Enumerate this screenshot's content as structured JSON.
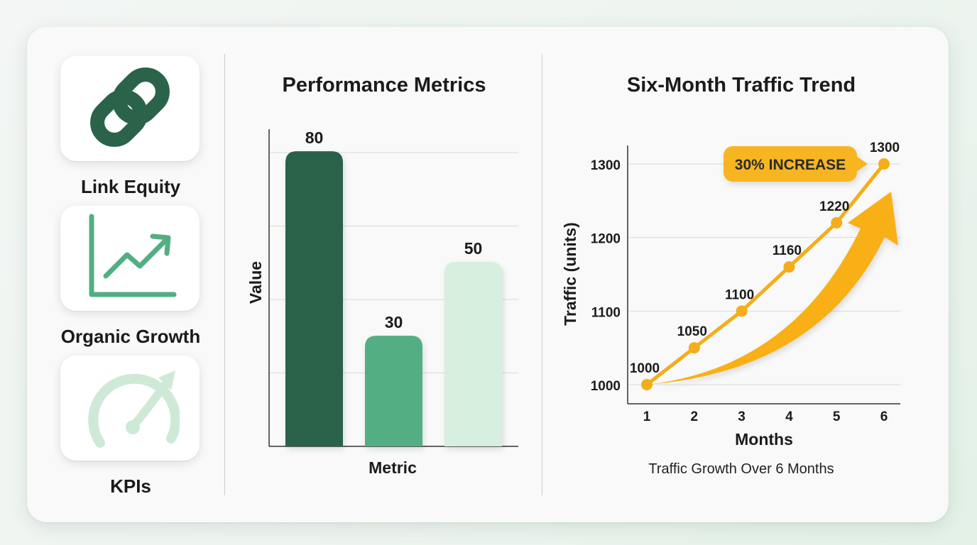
{
  "features": [
    {
      "icon": "link-icon",
      "label": "Link Equity"
    },
    {
      "icon": "growth-chart-icon",
      "label": "Organic Growth"
    },
    {
      "icon": "gauge-icon",
      "label": "KPIs"
    }
  ],
  "colors": {
    "dark_green": "#2b624a",
    "mid_green": "#52af83",
    "light_green": "#d6efdf",
    "orange": "#f5ad19",
    "badge": "#f8b520"
  },
  "chart_data": [
    {
      "type": "bar",
      "title": "Performance Metrics",
      "xlabel": "Metric",
      "ylabel": "Value",
      "categories": [
        "",
        "",
        ""
      ],
      "values": [
        80,
        30,
        50
      ],
      "bar_colors": [
        "#2b624a",
        "#52af83",
        "#d6efdf"
      ],
      "ylim": [
        0,
        86
      ],
      "grid": true
    },
    {
      "type": "line",
      "title": "Six-Month Traffic Trend",
      "xlabel": "Months",
      "ylabel": "Traffic (units)",
      "x": [
        1,
        2,
        3,
        4,
        5,
        6
      ],
      "y": [
        1000,
        1050,
        1100,
        1160,
        1220,
        1300
      ],
      "yticks": [
        1000,
        1100,
        1200,
        1300
      ],
      "ylim": [
        1000,
        1300
      ],
      "grid": true,
      "annotation": "30% INCREASE",
      "caption": "Traffic Growth Over 6 Months",
      "line_color": "#f5ad19"
    }
  ]
}
